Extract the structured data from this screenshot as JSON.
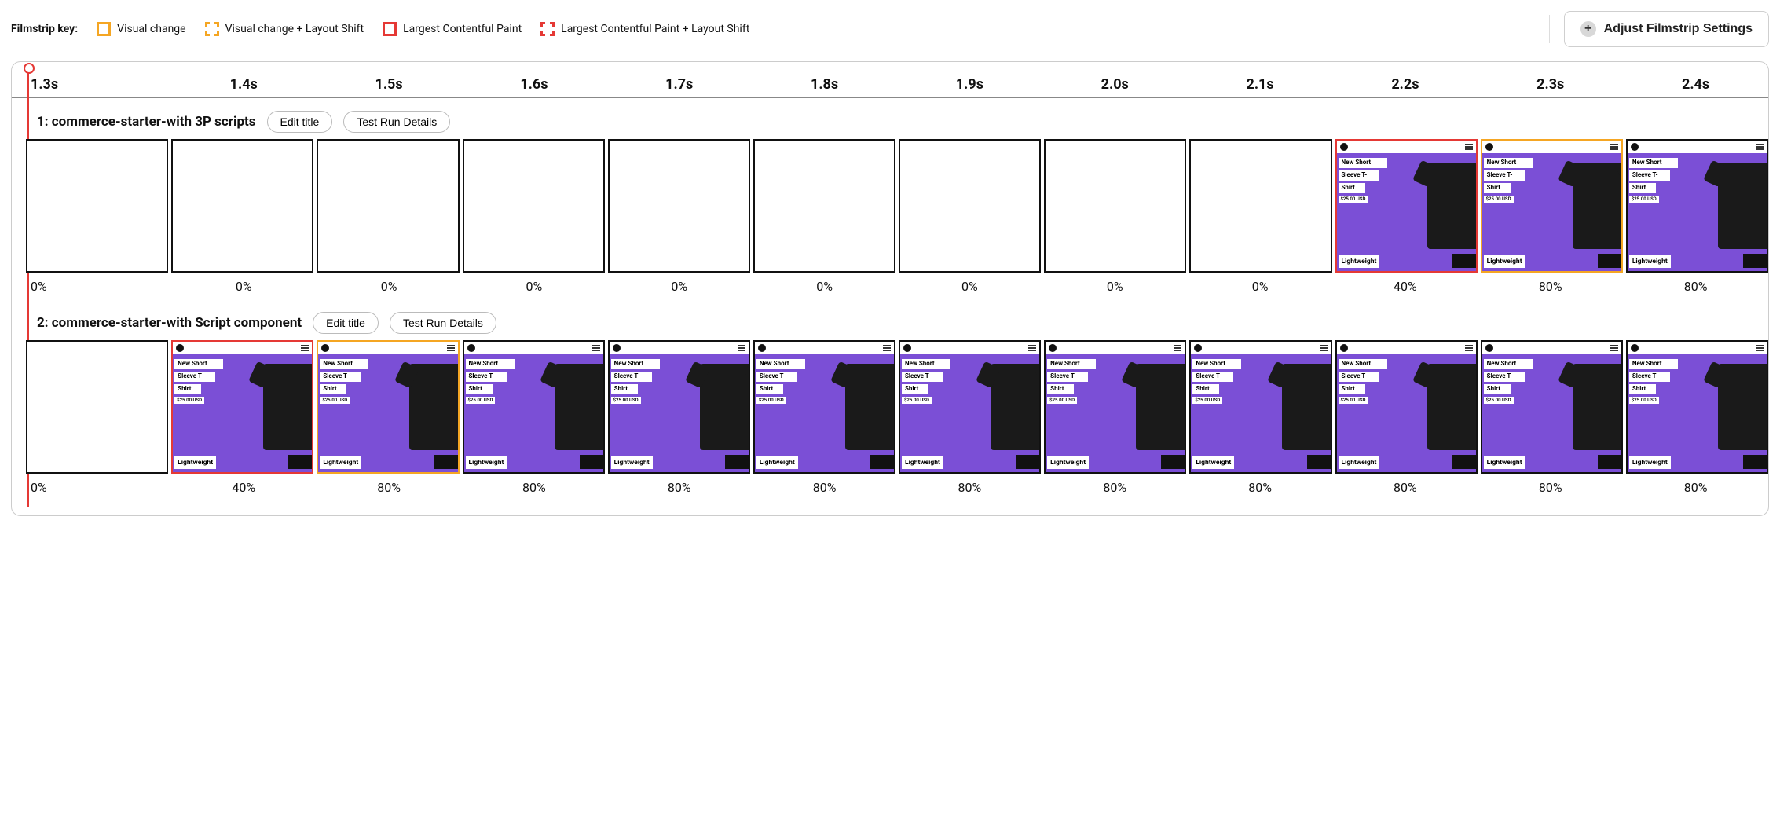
{
  "legend": {
    "title": "Filmstrip key:",
    "items": [
      {
        "label": "Visual change",
        "color": "#f5a623",
        "dashed": false
      },
      {
        "label": "Visual change + Layout Shift",
        "color": "#f5a623",
        "dashed": true
      },
      {
        "label": "Largest Contentful Paint",
        "color": "#e53935",
        "dashed": false
      },
      {
        "label": "Largest Contentful Paint + Layout Shift",
        "color": "#e53935",
        "dashed": true
      }
    ]
  },
  "settings_button": "Adjust Filmstrip Settings",
  "colors": {
    "frame_default_border": "#111111",
    "lcp_border": "#e53935",
    "visual_change_border": "#f5a623",
    "playhead": "#e53935",
    "thumb_bg": "#7b4fd6"
  },
  "time_axis": [
    "1.3s",
    "1.4s",
    "1.5s",
    "1.6s",
    "1.7s",
    "1.8s",
    "1.9s",
    "2.0s",
    "2.1s",
    "2.2s",
    "2.3s",
    "2.4s"
  ],
  "runs": [
    {
      "title": "1: commerce-starter-with 3P scripts",
      "edit_label": "Edit title",
      "details_label": "Test Run Details",
      "frames": [
        {
          "pct": "0%",
          "content": false,
          "border": "default"
        },
        {
          "pct": "0%",
          "content": false,
          "border": "default"
        },
        {
          "pct": "0%",
          "content": false,
          "border": "default"
        },
        {
          "pct": "0%",
          "content": false,
          "border": "default"
        },
        {
          "pct": "0%",
          "content": false,
          "border": "default"
        },
        {
          "pct": "0%",
          "content": false,
          "border": "default"
        },
        {
          "pct": "0%",
          "content": false,
          "border": "default"
        },
        {
          "pct": "0%",
          "content": false,
          "border": "default"
        },
        {
          "pct": "0%",
          "content": false,
          "border": "default"
        },
        {
          "pct": "40%",
          "content": true,
          "border": "lcp"
        },
        {
          "pct": "80%",
          "content": true,
          "border": "visual"
        },
        {
          "pct": "80%",
          "content": true,
          "border": "default"
        }
      ]
    },
    {
      "title": "2: commerce-starter-with Script component",
      "edit_label": "Edit title",
      "details_label": "Test Run Details",
      "frames": [
        {
          "pct": "0%",
          "content": false,
          "border": "default"
        },
        {
          "pct": "40%",
          "content": true,
          "border": "lcp"
        },
        {
          "pct": "80%",
          "content": true,
          "border": "visual"
        },
        {
          "pct": "80%",
          "content": true,
          "border": "default"
        },
        {
          "pct": "80%",
          "content": true,
          "border": "default"
        },
        {
          "pct": "80%",
          "content": true,
          "border": "default"
        },
        {
          "pct": "80%",
          "content": true,
          "border": "default"
        },
        {
          "pct": "80%",
          "content": true,
          "border": "default"
        },
        {
          "pct": "80%",
          "content": true,
          "border": "default"
        },
        {
          "pct": "80%",
          "content": true,
          "border": "default"
        },
        {
          "pct": "80%",
          "content": true,
          "border": "default"
        },
        {
          "pct": "80%",
          "content": true,
          "border": "default"
        }
      ]
    }
  ],
  "thumb": {
    "title_l1": "New Short",
    "title_l2": "Sleeve T-",
    "title_l3": "Shirt",
    "price": "$25.00 USD",
    "badge": "Lightweight"
  }
}
